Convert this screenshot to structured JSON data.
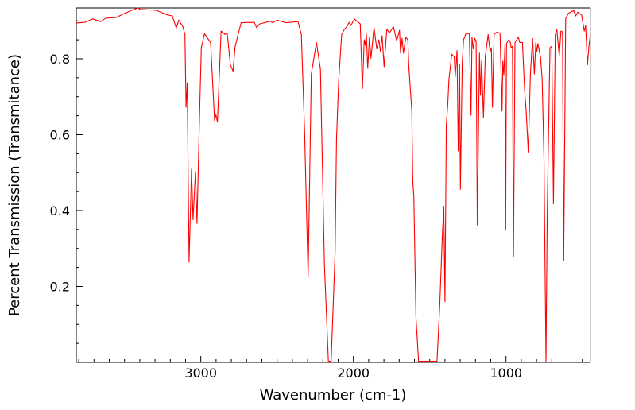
{
  "chart_data": {
    "type": "line",
    "title": "",
    "xlabel": "Wavenumber (cm-1)",
    "ylabel": "Percent Transmission (Transmitance)",
    "xlim": [
      3816,
      448
    ],
    "ylim": [
      0.0,
      0.934
    ],
    "x_reversed": true,
    "grid": false,
    "x_ticks": [
      {
        "value": 3000,
        "label": "3000"
      },
      {
        "value": 2000,
        "label": "2000"
      },
      {
        "value": 1000,
        "label": "1000"
      }
    ],
    "x_minor_step": 100,
    "y_ticks": [
      {
        "value": 0.2,
        "label": "0.2"
      },
      {
        "value": 0.4,
        "label": "0.4"
      },
      {
        "value": 0.6,
        "label": "0.6"
      },
      {
        "value": 0.8,
        "label": "0.8"
      }
    ],
    "y_minor_step": 0.05,
    "series": [
      {
        "name": "spectrum",
        "color": "#ff0000",
        "points": [
          [
            3821,
            0.894
          ],
          [
            3760,
            0.896
          ],
          [
            3708,
            0.905
          ],
          [
            3656,
            0.898
          ],
          [
            3623,
            0.907
          ],
          [
            3552,
            0.909
          ],
          [
            3500,
            0.92
          ],
          [
            3413,
            0.934
          ],
          [
            3396,
            0.93
          ],
          [
            3292,
            0.928
          ],
          [
            3222,
            0.916
          ],
          [
            3187,
            0.913
          ],
          [
            3161,
            0.881
          ],
          [
            3144,
            0.902
          ],
          [
            3118,
            0.885
          ],
          [
            3104,
            0.864
          ],
          [
            3097,
            0.672
          ],
          [
            3089,
            0.737
          ],
          [
            3077,
            0.264
          ],
          [
            3061,
            0.509
          ],
          [
            3051,
            0.376
          ],
          [
            3035,
            0.503
          ],
          [
            3025,
            0.366
          ],
          [
            3010,
            0.627
          ],
          [
            2997,
            0.829
          ],
          [
            2976,
            0.866
          ],
          [
            2936,
            0.843
          ],
          [
            2910,
            0.637
          ],
          [
            2901,
            0.653
          ],
          [
            2891,
            0.633
          ],
          [
            2867,
            0.873
          ],
          [
            2841,
            0.864
          ],
          [
            2827,
            0.868
          ],
          [
            2806,
            0.784
          ],
          [
            2789,
            0.767
          ],
          [
            2775,
            0.833
          ],
          [
            2736,
            0.895
          ],
          [
            2650,
            0.896
          ],
          [
            2635,
            0.882
          ],
          [
            2615,
            0.892
          ],
          [
            2545,
            0.899
          ],
          [
            2528,
            0.895
          ],
          [
            2502,
            0.902
          ],
          [
            2441,
            0.895
          ],
          [
            2363,
            0.898
          ],
          [
            2341,
            0.864
          ],
          [
            2320,
            0.606
          ],
          [
            2297,
            0.224
          ],
          [
            2276,
            0.76
          ],
          [
            2242,
            0.843
          ],
          [
            2216,
            0.773
          ],
          [
            2190,
            0.258
          ],
          [
            2164,
            0.003
          ],
          [
            2146,
            0.003
          ],
          [
            2120,
            0.292
          ],
          [
            2111,
            0.585
          ],
          [
            2097,
            0.739
          ],
          [
            2077,
            0.864
          ],
          [
            2059,
            0.878
          ],
          [
            2042,
            0.885
          ],
          [
            2028,
            0.896
          ],
          [
            2016,
            0.888
          ],
          [
            1993,
            0.905
          ],
          [
            1955,
            0.892
          ],
          [
            1941,
            0.721
          ],
          [
            1929,
            0.85
          ],
          [
            1923,
            0.836
          ],
          [
            1915,
            0.865
          ],
          [
            1906,
            0.775
          ],
          [
            1895,
            0.857
          ],
          [
            1885,
            0.801
          ],
          [
            1865,
            0.883
          ],
          [
            1847,
            0.826
          ],
          [
            1833,
            0.85
          ],
          [
            1823,
            0.819
          ],
          [
            1812,
            0.861
          ],
          [
            1799,
            0.779
          ],
          [
            1781,
            0.878
          ],
          [
            1764,
            0.868
          ],
          [
            1738,
            0.885
          ],
          [
            1716,
            0.847
          ],
          [
            1698,
            0.875
          ],
          [
            1691,
            0.815
          ],
          [
            1681,
            0.854
          ],
          [
            1672,
            0.815
          ],
          [
            1656,
            0.857
          ],
          [
            1643,
            0.85
          ],
          [
            1637,
            0.781
          ],
          [
            1617,
            0.662
          ],
          [
            1611,
            0.477
          ],
          [
            1604,
            0.439
          ],
          [
            1590,
            0.119
          ],
          [
            1573,
            0.003
          ],
          [
            1452,
            0.003
          ],
          [
            1434,
            0.153
          ],
          [
            1417,
            0.334
          ],
          [
            1408,
            0.411
          ],
          [
            1400,
            0.16
          ],
          [
            1391,
            0.627
          ],
          [
            1382,
            0.679
          ],
          [
            1374,
            0.746
          ],
          [
            1356,
            0.812
          ],
          [
            1339,
            0.805
          ],
          [
            1333,
            0.753
          ],
          [
            1321,
            0.822
          ],
          [
            1313,
            0.557
          ],
          [
            1304,
            0.784
          ],
          [
            1299,
            0.456
          ],
          [
            1287,
            0.787
          ],
          [
            1278,
            0.85
          ],
          [
            1261,
            0.868
          ],
          [
            1240,
            0.865
          ],
          [
            1229,
            0.651
          ],
          [
            1223,
            0.857
          ],
          [
            1214,
            0.826
          ],
          [
            1205,
            0.854
          ],
          [
            1196,
            0.847
          ],
          [
            1188,
            0.362
          ],
          [
            1174,
            0.815
          ],
          [
            1167,
            0.704
          ],
          [
            1160,
            0.794
          ],
          [
            1148,
            0.645
          ],
          [
            1136,
            0.805
          ],
          [
            1117,
            0.864
          ],
          [
            1104,
            0.819
          ],
          [
            1096,
            0.829
          ],
          [
            1089,
            0.672
          ],
          [
            1078,
            0.864
          ],
          [
            1061,
            0.87
          ],
          [
            1039,
            0.868
          ],
          [
            1026,
            0.662
          ],
          [
            1021,
            0.794
          ],
          [
            1014,
            0.756
          ],
          [
            1007,
            0.836
          ],
          [
            1002,
            0.348
          ],
          [
            997,
            0.84
          ],
          [
            983,
            0.85
          ],
          [
            974,
            0.847
          ],
          [
            966,
            0.829
          ],
          [
            958,
            0.833
          ],
          [
            951,
            0.278
          ],
          [
            941,
            0.843
          ],
          [
            919,
            0.857
          ],
          [
            910,
            0.843
          ],
          [
            892,
            0.843
          ],
          [
            878,
            0.718
          ],
          [
            868,
            0.662
          ],
          [
            854,
            0.554
          ],
          [
            840,
            0.76
          ],
          [
            826,
            0.854
          ],
          [
            814,
            0.76
          ],
          [
            805,
            0.843
          ],
          [
            798,
            0.819
          ],
          [
            791,
            0.84
          ],
          [
            774,
            0.805
          ],
          [
            763,
            0.746
          ],
          [
            751,
            0.536
          ],
          [
            738,
            0.003
          ],
          [
            730,
            0.397
          ],
          [
            712,
            0.829
          ],
          [
            700,
            0.833
          ],
          [
            689,
            0.418
          ],
          [
            677,
            0.864
          ],
          [
            667,
            0.877
          ],
          [
            651,
            0.808
          ],
          [
            640,
            0.873
          ],
          [
            630,
            0.871
          ],
          [
            622,
            0.268
          ],
          [
            609,
            0.906
          ],
          [
            591,
            0.92
          ],
          [
            557,
            0.927
          ],
          [
            543,
            0.913
          ],
          [
            530,
            0.923
          ],
          [
            505,
            0.916
          ],
          [
            487,
            0.873
          ],
          [
            478,
            0.888
          ],
          [
            466,
            0.784
          ],
          [
            457,
            0.833
          ],
          [
            447,
            0.864
          ]
        ]
      }
    ]
  }
}
